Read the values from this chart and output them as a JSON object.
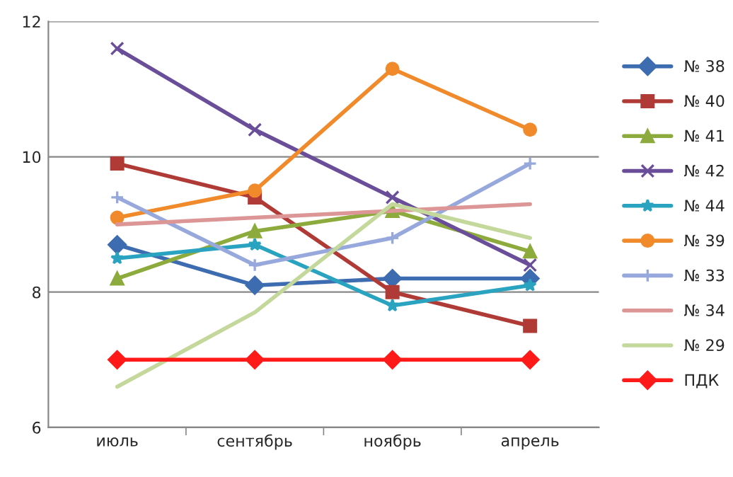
{
  "chart_data": {
    "type": "line",
    "categories": [
      "июль",
      "сентябрь",
      "ноябрь",
      "апрель"
    ],
    "series": [
      {
        "name": "№ 38",
        "color": "#3d6cb0",
        "marker": "diamond",
        "values": [
          8.7,
          8.1,
          8.2,
          8.2
        ]
      },
      {
        "name": "№ 40",
        "color": "#b03a36",
        "marker": "square",
        "values": [
          9.9,
          9.4,
          8.0,
          7.5
        ]
      },
      {
        "name": "№ 41",
        "color": "#8cab3c",
        "marker": "triangle",
        "values": [
          8.2,
          8.9,
          9.2,
          8.6
        ]
      },
      {
        "name": "№ 42",
        "color": "#6a4e99",
        "marker": "cross",
        "values": [
          11.6,
          10.4,
          9.4,
          8.4
        ]
      },
      {
        "name": "№ 44",
        "color": "#2aa3c0",
        "marker": "star",
        "values": [
          8.5,
          8.7,
          7.8,
          8.1
        ]
      },
      {
        "name": "№ 39",
        "color": "#f08a2a",
        "marker": "circle",
        "values": [
          9.1,
          9.5,
          11.3,
          10.4
        ]
      },
      {
        "name": "№ 33",
        "color": "#97a8dc",
        "marker": "plus",
        "values": [
          9.4,
          8.4,
          8.8,
          9.9
        ]
      },
      {
        "name": "№ 34",
        "color": "#dc9696",
        "marker": "none",
        "values": [
          9.0,
          9.1,
          9.2,
          9.3
        ]
      },
      {
        "name": "№ 29",
        "color": "#c3d89a",
        "marker": "none",
        "values": [
          6.6,
          7.7,
          9.3,
          8.8
        ]
      },
      {
        "name": "ПДК",
        "color": "#ff1a1a",
        "marker": "diamond",
        "values": [
          7,
          7,
          7,
          7
        ]
      }
    ],
    "ylim": [
      6,
      12
    ],
    "yticks": [
      6,
      8,
      10,
      12
    ],
    "grid": "y",
    "legend": "right",
    "line_style": "solid"
  }
}
